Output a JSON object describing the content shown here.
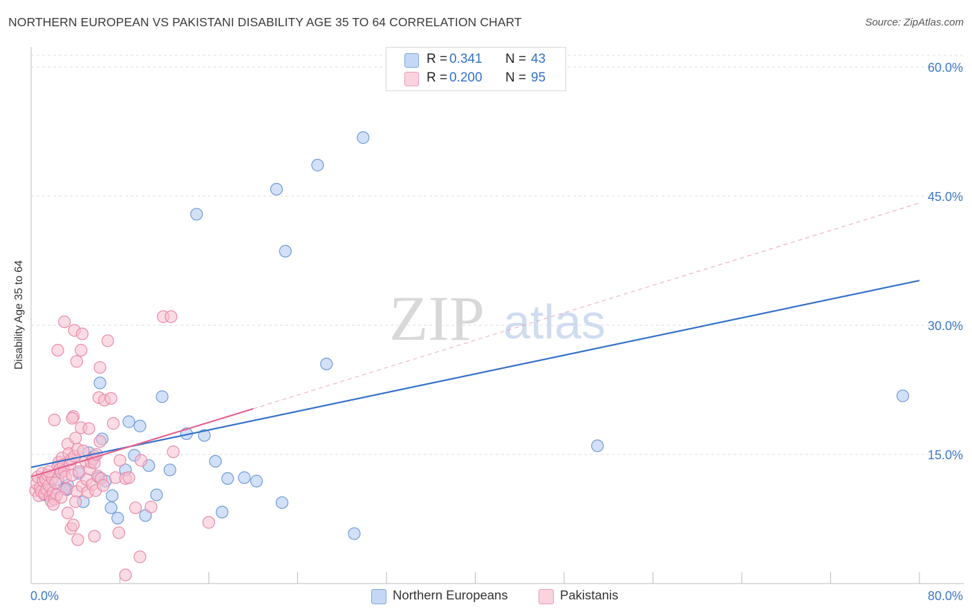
{
  "title": "NORTHERN EUROPEAN VS PAKISTANI DISABILITY AGE 35 TO 64 CORRELATION CHART",
  "source": "Source: ZipAtlas.com",
  "watermark": {
    "zip": "ZIP",
    "atlas": "atlas"
  },
  "legend": {
    "r_label": "R =",
    "n_label": "N =",
    "items": [
      {
        "name": "Northern Europeans",
        "r": "0.341",
        "n": "43",
        "fill": "#adc8f0",
        "stroke": "#6e9ad8"
      },
      {
        "name": "Pakistanis",
        "r": "0.200",
        "n": "95",
        "fill": "#f8c0d0",
        "stroke": "#e88aa8"
      }
    ]
  },
  "chart_data": {
    "type": "scatter",
    "title": "NORTHERN EUROPEAN VS PAKISTANI DISABILITY AGE 35 TO 64 CORRELATION CHART",
    "xlabel": "",
    "ylabel": "Disability Age 35 to 64",
    "xlim": [
      0,
      80
    ],
    "ylim": [
      0,
      60
    ],
    "x_tick_labels": [
      "0.0%",
      "80.0%"
    ],
    "y_ticks": [
      15,
      30,
      45,
      60
    ],
    "y_tick_labels": [
      "15.0%",
      "30.0%",
      "45.0%",
      "60.0%"
    ],
    "legend_position": "top-center",
    "colors": {
      "blue": "#3370c8",
      "pink": "#e4628e",
      "blue_point": "#adc8f0",
      "pink_point": "#f8c0d0",
      "tick_label": "#3a78c8"
    },
    "series": [
      {
        "name": "Northern Europeans",
        "color": "#3370c8",
        "points": [
          [
            3.3,
            11.4
          ],
          [
            4.7,
            9.5
          ],
          [
            2.4,
            12.1
          ],
          [
            3.2,
            10.9
          ],
          [
            5.2,
            15.2
          ],
          [
            5.7,
            14.8
          ],
          [
            4.3,
            12.8
          ],
          [
            6.1,
            12.3
          ],
          [
            6.7,
            11.9
          ],
          [
            6.2,
            23.3
          ],
          [
            6.4,
            16.8
          ],
          [
            7.2,
            8.8
          ],
          [
            7.3,
            10.2
          ],
          [
            7.8,
            7.6
          ],
          [
            8.5,
            13.2
          ],
          [
            8.8,
            18.8
          ],
          [
            9.3,
            14.9
          ],
          [
            9.8,
            18.3
          ],
          [
            10.3,
            7.9
          ],
          [
            10.6,
            13.7
          ],
          [
            11.3,
            10.3
          ],
          [
            11.8,
            21.7
          ],
          [
            12.5,
            13.2
          ],
          [
            14.0,
            17.4
          ],
          [
            14.9,
            42.9
          ],
          [
            15.6,
            17.2
          ],
          [
            16.6,
            14.2
          ],
          [
            17.2,
            8.3
          ],
          [
            17.7,
            12.2
          ],
          [
            19.2,
            12.3
          ],
          [
            20.3,
            11.9
          ],
          [
            22.1,
            45.8
          ],
          [
            22.6,
            9.4
          ],
          [
            22.9,
            38.6
          ],
          [
            25.8,
            48.6
          ],
          [
            26.6,
            25.5
          ],
          [
            29.1,
            5.8
          ],
          [
            29.9,
            51.8
          ],
          [
            51.0,
            16.0
          ],
          [
            78.5,
            21.8
          ],
          [
            1.2,
            10.3
          ],
          [
            1.8,
            10.8
          ],
          [
            3.0,
            11.0
          ]
        ],
        "trendline": {
          "x": [
            0,
            80
          ],
          "y": [
            13.5,
            35.2
          ]
        }
      },
      {
        "name": "Pakistanis",
        "color": "#e4628e",
        "points": [
          [
            0.4,
            10.8
          ],
          [
            0.5,
            11.6
          ],
          [
            0.6,
            12.4
          ],
          [
            0.7,
            10.2
          ],
          [
            0.8,
            11.1
          ],
          [
            0.9,
            10.7
          ],
          [
            1.0,
            12.8
          ],
          [
            1.1,
            11.9
          ],
          [
            1.2,
            10.4
          ],
          [
            1.3,
            12.1
          ],
          [
            1.4,
            10.9
          ],
          [
            1.5,
            12.6
          ],
          [
            1.6,
            11.4
          ],
          [
            1.7,
            10.1
          ],
          [
            1.8,
            9.6
          ],
          [
            1.9,
            12.2
          ],
          [
            2.0,
            10.6
          ],
          [
            2.1,
            9.8
          ],
          [
            2.2,
            11.7
          ],
          [
            2.3,
            10.3
          ],
          [
            2.4,
            13.6
          ],
          [
            2.5,
            14.1
          ],
          [
            2.6,
            13.3
          ],
          [
            2.7,
            12.9
          ],
          [
            2.8,
            14.6
          ],
          [
            2.9,
            13.8
          ],
          [
            3.0,
            13.1
          ],
          [
            3.1,
            12.4
          ],
          [
            3.2,
            11.0
          ],
          [
            3.3,
            16.2
          ],
          [
            3.4,
            15.1
          ],
          [
            3.5,
            13.9
          ],
          [
            3.6,
            14.4
          ],
          [
            3.7,
            12.6
          ],
          [
            3.8,
            19.4
          ],
          [
            3.9,
            14.8
          ],
          [
            4.0,
            16.9
          ],
          [
            4.1,
            10.7
          ],
          [
            4.2,
            15.6
          ],
          [
            4.3,
            13.0
          ],
          [
            4.5,
            18.1
          ],
          [
            4.6,
            11.3
          ],
          [
            4.7,
            15.4
          ],
          [
            4.9,
            14.2
          ],
          [
            5.0,
            12.1
          ],
          [
            5.1,
            10.6
          ],
          [
            5.2,
            18.0
          ],
          [
            5.3,
            13.3
          ],
          [
            5.4,
            14.1
          ],
          [
            5.5,
            11.5
          ],
          [
            5.6,
            14.5
          ],
          [
            5.7,
            14.0
          ],
          [
            5.8,
            10.8
          ],
          [
            5.9,
            15.0
          ],
          [
            6.0,
            12.5
          ],
          [
            6.1,
            21.6
          ],
          [
            6.2,
            16.5
          ],
          [
            6.3,
            12.2
          ],
          [
            6.5,
            11.4
          ],
          [
            6.6,
            21.3
          ],
          [
            6.9,
            28.2
          ],
          [
            7.2,
            21.5
          ],
          [
            7.4,
            18.6
          ],
          [
            7.6,
            12.3
          ],
          [
            8.0,
            14.3
          ],
          [
            8.5,
            12.2
          ],
          [
            8.8,
            12.3
          ],
          [
            9.4,
            8.8
          ],
          [
            9.9,
            14.3
          ],
          [
            10.8,
            8.9
          ],
          [
            11.9,
            31.0
          ],
          [
            12.6,
            31.0
          ],
          [
            12.8,
            15.3
          ],
          [
            16.0,
            7.1
          ],
          [
            2.1,
            19.0
          ],
          [
            2.4,
            27.1
          ],
          [
            3.0,
            30.4
          ],
          [
            3.7,
            19.2
          ],
          [
            3.9,
            29.4
          ],
          [
            4.1,
            25.8
          ],
          [
            4.5,
            27.1
          ],
          [
            4.6,
            29.0
          ],
          [
            6.2,
            25.1
          ],
          [
            2.0,
            9.2
          ],
          [
            3.3,
            8.2
          ],
          [
            3.6,
            6.4
          ],
          [
            3.8,
            6.8
          ],
          [
            4.2,
            5.1
          ],
          [
            5.7,
            5.5
          ],
          [
            7.9,
            5.9
          ],
          [
            9.8,
            3.1
          ],
          [
            8.5,
            1.0
          ],
          [
            1.6,
            13.0
          ],
          [
            2.7,
            10.0
          ],
          [
            4.0,
            9.5
          ]
        ],
        "trendline": {
          "x": [
            0,
            20
          ],
          "y": [
            12.4,
            20.3
          ]
        },
        "trendline_extension": {
          "x": [
            20,
            80
          ],
          "y": [
            20.3,
            44.2
          ]
        }
      }
    ]
  }
}
